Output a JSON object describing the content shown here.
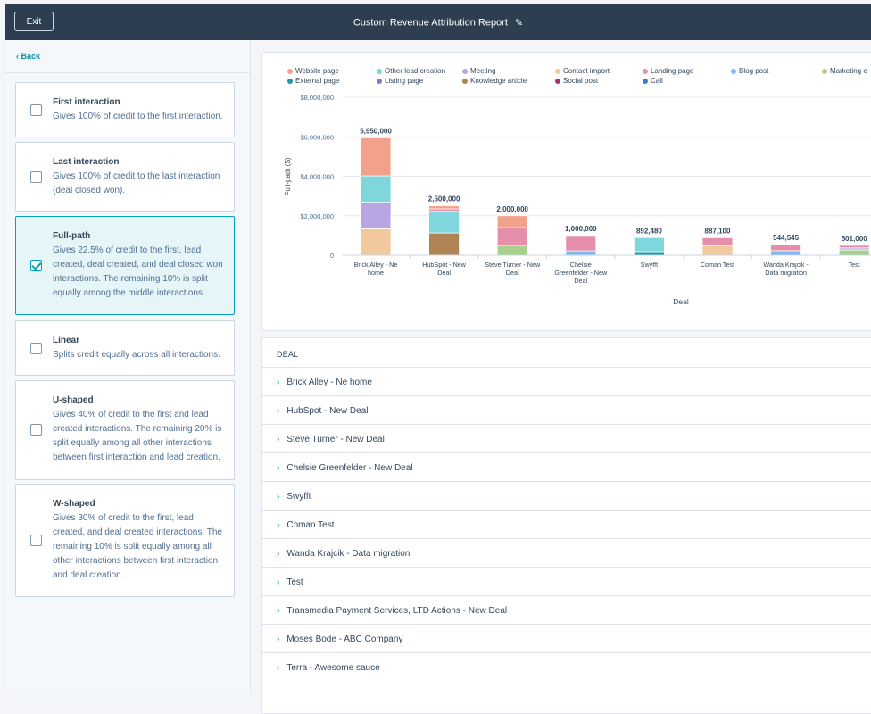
{
  "header": {
    "exit_label": "Exit",
    "title": "Custom Revenue Attribution Report"
  },
  "sidebar": {
    "back_label": "‹ Back",
    "models": [
      {
        "name": "First interaction",
        "desc": "Gives 100% of credit to the first interaction.",
        "checked": false
      },
      {
        "name": "Last interaction",
        "desc": "Gives 100% of credit to the last interaction (deal closed won).",
        "checked": false
      },
      {
        "name": "Full-path",
        "desc": "Gives 22.5% of credit to the first, lead created, deal created, and deal closed won interactions. The remaining 10% is split equally among the middle interactions.",
        "checked": true
      },
      {
        "name": "Linear",
        "desc": "Splits credit equally across all interactions.",
        "checked": false
      },
      {
        "name": "U-shaped",
        "desc": "Gives 40% of credit to the first and lead created interactions. The remaining 20% is split equally among all other interactions between first interaction and lead creation.",
        "checked": false
      },
      {
        "name": "W-shaped",
        "desc": "Gives 30% of credit to the first, lead created, and deal created interactions. The remaining 10% is split equally among all other interactions between first interaction and deal creation.",
        "checked": false
      }
    ]
  },
  "legend": [
    {
      "label": "Website page",
      "color": "#f2a28a"
    },
    {
      "label": "Other lead creation",
      "color": "#7fd6dc"
    },
    {
      "label": "Meeting",
      "color": "#b9a5e2"
    },
    {
      "label": "Contact import",
      "color": "#f2c99c"
    },
    {
      "label": "Landing page",
      "color": "#e58fad"
    },
    {
      "label": "Blog post",
      "color": "#7fb8f0"
    },
    {
      "label": "Marketing e",
      "color": "#a8d08d"
    },
    {
      "label": "External page",
      "color": "#1a9aa6"
    },
    {
      "label": "Listing page",
      "color": "#8a73c9"
    },
    {
      "label": "Knowledge article",
      "color": "#b08355"
    },
    {
      "label": "Social post",
      "color": "#a5336f"
    },
    {
      "label": "Call",
      "color": "#3a7fc8"
    }
  ],
  "chart_data": {
    "type": "bar",
    "stacked": true,
    "title": "",
    "xlabel": "Deal",
    "ylabel": "Full-path ($)",
    "ylim": [
      0,
      8000000
    ],
    "yticks": [
      "0",
      "$2,000,000",
      "$4,000,000",
      "$6,000,000",
      "$8,000,000"
    ],
    "grid": true,
    "legend_position": "top",
    "categories": [
      "Brick Alley - Ne home",
      "HubSpot - New Deal",
      "Steve Turner - New Deal",
      "Chelsie Greenfelder - New Deal",
      "Swyfft",
      "Coman Test",
      "Wanda Krajcik - Data migration",
      "Test"
    ],
    "totals": [
      "5,950,000",
      "2,500,000",
      "2,000,000",
      "1,000,000",
      "892,480",
      "887,100",
      "544,545",
      "501,000"
    ],
    "series": [
      {
        "name": "Knowledge article",
        "color": "#b08355",
        "values": [
          0,
          1125000,
          0,
          0,
          0,
          0,
          0,
          0
        ]
      },
      {
        "name": "External page",
        "color": "#1a9aa6",
        "values": [
          0,
          0,
          0,
          0,
          180000,
          0,
          0,
          0
        ]
      },
      {
        "name": "Blog post",
        "color": "#7fb8f0",
        "values": [
          0,
          0,
          0,
          220000,
          0,
          0,
          230000,
          0
        ]
      },
      {
        "name": "Marketing e",
        "color": "#a8d08d",
        "values": [
          0,
          0,
          500000,
          0,
          0,
          0,
          0,
          270000
        ]
      },
      {
        "name": "Contact import",
        "color": "#f2c99c",
        "values": [
          1340000,
          0,
          0,
          0,
          0,
          490000,
          0,
          0
        ]
      },
      {
        "name": "Meeting",
        "color": "#b9a5e2",
        "values": [
          1340000,
          0,
          0,
          0,
          0,
          0,
          0,
          100000
        ]
      },
      {
        "name": "Other lead creation",
        "color": "#7fd6dc",
        "values": [
          1340000,
          1100000,
          0,
          0,
          712480,
          0,
          0,
          0
        ]
      },
      {
        "name": "Landing page",
        "color": "#e58fad",
        "values": [
          0,
          125000,
          900000,
          780000,
          0,
          397100,
          314545,
          131000
        ]
      },
      {
        "name": "Website page",
        "color": "#f2a28a",
        "values": [
          1930000,
          150000,
          600000,
          0,
          0,
          0,
          0,
          0
        ]
      }
    ]
  },
  "table": {
    "header": "DEAL",
    "rows": [
      "Brick Alley - Ne home",
      "HubSpot - New Deal",
      "Steve Turner - New Deal",
      "Chelsie Greenfelder - New Deal",
      "Swyfft",
      "Coman Test",
      "Wanda Krajcik - Data migration",
      "Test",
      "Transmedia Payment Services, LTD Actions - New Deal",
      "Moses Bode - ABC Company",
      "Terra - Awesome sauce"
    ]
  }
}
